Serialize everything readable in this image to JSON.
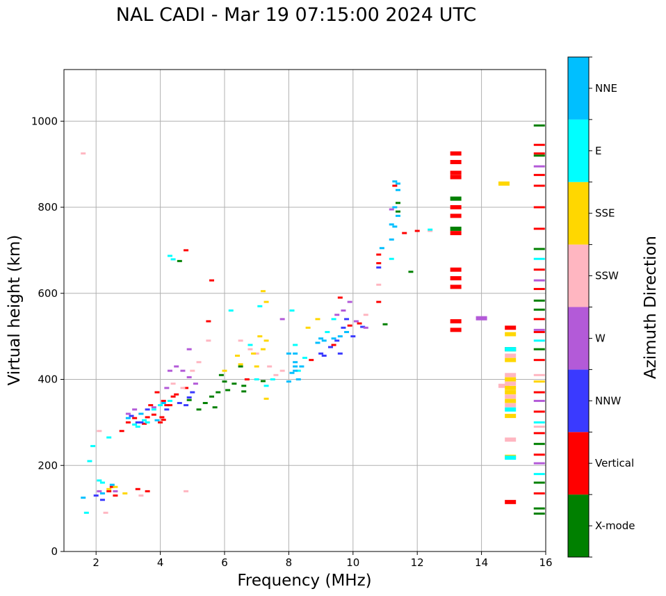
{
  "chart_data": {
    "type": "scatter",
    "title": "NAL CADI - Mar 19 07:15:00 2024 UTC",
    "xlabel": "Frequency (MHz)",
    "ylabel": "Virtual height (km)",
    "xlim": [
      1,
      16
    ],
    "ylim": [
      0,
      1120
    ],
    "xticks": [
      2,
      4,
      6,
      8,
      10,
      12,
      14,
      16
    ],
    "yticks": [
      0,
      200,
      400,
      600,
      800,
      1000
    ],
    "grid": true,
    "colorbar": {
      "label": "Azimuth Direction",
      "categories": [
        "X-mode",
        "Vertical",
        "NNW",
        "W",
        "SSW",
        "SSE",
        "E",
        "NNE"
      ],
      "colors": [
        "#008000",
        "#ff0000",
        "#3a3aff",
        "#b35ad8",
        "#ffb6c1",
        "#ffd700",
        "#00ffff",
        "#00bfff"
      ]
    },
    "series": [
      {
        "name": "X-mode",
        "points": [
          [
            5.4,
            345
          ],
          [
            5.6,
            360
          ],
          [
            5.8,
            370
          ],
          [
            6.1,
            375
          ],
          [
            6.3,
            390
          ],
          [
            6.6,
            385
          ],
          [
            5.2,
            330
          ],
          [
            5.9,
            410
          ],
          [
            6.0,
            395
          ],
          [
            4.9,
            352
          ],
          [
            6.6,
            372
          ],
          [
            7.2,
            396
          ],
          [
            11.0,
            528
          ],
          [
            11.8,
            650
          ],
          [
            13.2,
            750
          ],
          [
            13.2,
            820
          ],
          [
            14.9,
            470
          ],
          [
            15.8,
            990
          ],
          [
            15.8,
            920
          ],
          [
            15.8,
            703
          ],
          [
            15.8,
            583
          ],
          [
            15.8,
            562
          ],
          [
            15.8,
            470
          ],
          [
            15.8,
            250
          ],
          [
            15.8,
            160
          ],
          [
            15.8,
            100
          ],
          [
            15.8,
            88
          ],
          [
            5.7,
            335
          ],
          [
            6.5,
            430
          ],
          [
            11.4,
            790
          ],
          [
            11.4,
            810
          ],
          [
            4.6,
            675
          ]
        ]
      },
      {
        "name": "Vertical",
        "points": [
          [
            2.8,
            280
          ],
          [
            3.0,
            300
          ],
          [
            3.2,
            310
          ],
          [
            3.4,
            320
          ],
          [
            3.6,
            312
          ],
          [
            3.8,
            318
          ],
          [
            4.0,
            300
          ],
          [
            4.2,
            340
          ],
          [
            4.1,
            350
          ],
          [
            3.9,
            370
          ],
          [
            4.4,
            360
          ],
          [
            4.5,
            365
          ],
          [
            4.8,
            380
          ],
          [
            3.5,
            297
          ],
          [
            3.7,
            340
          ],
          [
            4.3,
            340
          ],
          [
            4.1,
            306
          ],
          [
            4.05,
            312
          ],
          [
            9.4,
            480
          ],
          [
            9.6,
            590
          ],
          [
            9.9,
            525
          ],
          [
            10.2,
            530
          ],
          [
            10.8,
            690
          ],
          [
            10.8,
            580
          ],
          [
            11.3,
            850
          ],
          [
            11.6,
            740
          ],
          [
            12.0,
            745
          ],
          [
            13.2,
            925
          ],
          [
            13.2,
            905
          ],
          [
            13.2,
            880
          ],
          [
            13.2,
            870
          ],
          [
            13.2,
            800
          ],
          [
            13.2,
            780
          ],
          [
            13.2,
            740
          ],
          [
            13.2,
            655
          ],
          [
            13.2,
            635
          ],
          [
            13.2,
            615
          ],
          [
            13.2,
            535
          ],
          [
            13.2,
            515
          ],
          [
            14.9,
            115
          ],
          [
            14.9,
            520
          ],
          [
            15.8,
            945
          ],
          [
            15.8,
            925
          ],
          [
            15.8,
            875
          ],
          [
            15.8,
            850
          ],
          [
            15.8,
            800
          ],
          [
            15.8,
            750
          ],
          [
            15.8,
            655
          ],
          [
            15.8,
            610
          ],
          [
            15.8,
            540
          ],
          [
            15.8,
            510
          ],
          [
            15.8,
            445
          ],
          [
            15.8,
            370
          ],
          [
            15.8,
            325
          ],
          [
            15.8,
            275
          ],
          [
            15.8,
            225
          ],
          [
            15.8,
            135
          ],
          [
            4.8,
            700
          ],
          [
            5.6,
            630
          ],
          [
            5.5,
            535
          ],
          [
            2.4,
            140
          ],
          [
            2.5,
            150
          ],
          [
            2.6,
            130
          ],
          [
            3.3,
            145
          ],
          [
            3.6,
            140
          ],
          [
            6.7,
            400
          ],
          [
            8.7,
            445
          ],
          [
            10.8,
            670
          ]
        ]
      },
      {
        "name": "NNW",
        "points": [
          [
            3.1,
            315
          ],
          [
            3.3,
            300
          ],
          [
            3.6,
            330
          ],
          [
            4.2,
            330
          ],
          [
            4.6,
            345
          ],
          [
            4.9,
            358
          ],
          [
            5.0,
            370
          ],
          [
            9.0,
            460
          ],
          [
            9.3,
            475
          ],
          [
            9.5,
            490
          ],
          [
            9.7,
            520
          ],
          [
            9.8,
            540
          ],
          [
            10.0,
            500
          ],
          [
            9.1,
            455
          ],
          [
            9.6,
            460
          ],
          [
            10.3,
            522
          ],
          [
            2.0,
            130
          ],
          [
            2.2,
            120
          ],
          [
            3.4,
            300
          ],
          [
            10.8,
            660
          ],
          [
            4.8,
            340
          ]
        ]
      },
      {
        "name": "W",
        "points": [
          [
            3.2,
            330
          ],
          [
            3.8,
            335
          ],
          [
            4.3,
            420
          ],
          [
            4.5,
            430
          ],
          [
            4.7,
            420
          ],
          [
            4.9,
            405
          ],
          [
            5.1,
            390
          ],
          [
            4.2,
            380
          ],
          [
            9.7,
            560
          ],
          [
            9.5,
            550
          ],
          [
            10.1,
            535
          ],
          [
            10.4,
            520
          ],
          [
            11.2,
            795
          ],
          [
            2.1,
            140
          ],
          [
            2.6,
            140
          ],
          [
            14.0,
            542
          ],
          [
            15.8,
            895
          ],
          [
            15.8,
            630
          ],
          [
            15.8,
            515
          ],
          [
            15.8,
            350
          ],
          [
            15.8,
            205
          ],
          [
            4.9,
            470
          ],
          [
            3.0,
            320
          ],
          [
            7.8,
            540
          ],
          [
            9.9,
            580
          ]
        ]
      },
      {
        "name": "SSW",
        "points": [
          [
            4.4,
            390
          ],
          [
            4.7,
            380
          ],
          [
            5.0,
            420
          ],
          [
            5.2,
            440
          ],
          [
            6.5,
            490
          ],
          [
            6.8,
            470
          ],
          [
            7.0,
            460
          ],
          [
            7.4,
            430
          ],
          [
            7.6,
            410
          ],
          [
            7.8,
            420
          ],
          [
            10.4,
            550
          ],
          [
            10.8,
            620
          ],
          [
            12.4,
            745
          ],
          [
            14.9,
            455
          ],
          [
            14.9,
            390
          ],
          [
            14.9,
            360
          ],
          [
            14.9,
            340
          ],
          [
            14.9,
            260
          ],
          [
            14.9,
            410
          ],
          [
            14.7,
            385
          ],
          [
            1.6,
            925
          ],
          [
            2.3,
            90
          ],
          [
            2.1,
            280
          ],
          [
            15.8,
            410
          ],
          [
            15.8,
            395
          ],
          [
            15.8,
            290
          ],
          [
            4.8,
            140
          ],
          [
            3.4,
            130
          ],
          [
            5.5,
            490
          ]
        ]
      },
      {
        "name": "SSE",
        "points": [
          [
            6.0,
            420
          ],
          [
            6.5,
            435
          ],
          [
            6.9,
            460
          ],
          [
            7.1,
            500
          ],
          [
            7.3,
            490
          ],
          [
            7.2,
            470
          ],
          [
            7.0,
            430
          ],
          [
            7.2,
            605
          ],
          [
            7.3,
            580
          ],
          [
            8.9,
            540
          ],
          [
            8.6,
            520
          ],
          [
            8.2,
            480
          ],
          [
            14.7,
            855
          ],
          [
            14.9,
            505
          ],
          [
            14.9,
            445
          ],
          [
            14.9,
            400
          ],
          [
            14.9,
            380
          ],
          [
            14.9,
            370
          ],
          [
            14.9,
            350
          ],
          [
            14.9,
            315
          ],
          [
            14.9,
            220
          ],
          [
            2.4,
            145
          ],
          [
            2.6,
            150
          ],
          [
            2.9,
            135
          ],
          [
            15.8,
            395
          ],
          [
            7.3,
            355
          ],
          [
            6.4,
            455
          ]
        ]
      },
      {
        "name": "E",
        "points": [
          [
            2.4,
            265
          ],
          [
            3.2,
            295
          ],
          [
            3.5,
            305
          ],
          [
            3.8,
            330
          ],
          [
            4.0,
            340
          ],
          [
            4.3,
            350
          ],
          [
            3.3,
            290
          ],
          [
            3.6,
            300
          ],
          [
            6.2,
            560
          ],
          [
            7.1,
            570
          ],
          [
            7.0,
            400
          ],
          [
            7.5,
            400
          ],
          [
            7.3,
            385
          ],
          [
            8.3,
            420
          ],
          [
            8.2,
            480
          ],
          [
            8.5,
            450
          ],
          [
            9.4,
            540
          ],
          [
            9.2,
            510
          ],
          [
            11.2,
            680
          ],
          [
            12.4,
            748
          ],
          [
            14.9,
            218
          ],
          [
            14.9,
            330
          ],
          [
            14.9,
            470
          ],
          [
            1.9,
            245
          ],
          [
            1.8,
            210
          ],
          [
            2.1,
            165
          ],
          [
            1.7,
            90
          ],
          [
            2.2,
            160
          ],
          [
            4.3,
            687
          ],
          [
            4.4,
            679
          ],
          [
            15.8,
            680
          ],
          [
            15.8,
            490
          ],
          [
            15.8,
            300
          ],
          [
            15.8,
            180
          ],
          [
            6.8,
            480
          ],
          [
            8.1,
            560
          ]
        ]
      },
      {
        "name": "NNE",
        "points": [
          [
            3.0,
            310
          ],
          [
            3.4,
            320
          ],
          [
            3.9,
            305
          ],
          [
            4.1,
            345
          ],
          [
            8.0,
            460
          ],
          [
            8.2,
            440
          ],
          [
            8.2,
            420
          ],
          [
            8.3,
            400
          ],
          [
            8.4,
            430
          ],
          [
            8.0,
            395
          ],
          [
            8.1,
            415
          ],
          [
            8.9,
            485
          ],
          [
            9.0,
            495
          ],
          [
            9.1,
            490
          ],
          [
            9.4,
            495
          ],
          [
            9.6,
            500
          ],
          [
            9.8,
            510
          ],
          [
            10.9,
            705
          ],
          [
            11.3,
            860
          ],
          [
            11.4,
            855
          ],
          [
            11.4,
            840
          ],
          [
            11.3,
            800
          ],
          [
            11.4,
            780
          ],
          [
            11.2,
            760
          ],
          [
            11.3,
            755
          ],
          [
            11.2,
            725
          ],
          [
            2.2,
            135
          ],
          [
            2.5,
            155
          ],
          [
            1.6,
            125
          ],
          [
            8.2,
            460
          ],
          [
            8.2,
            430
          ]
        ]
      }
    ]
  }
}
